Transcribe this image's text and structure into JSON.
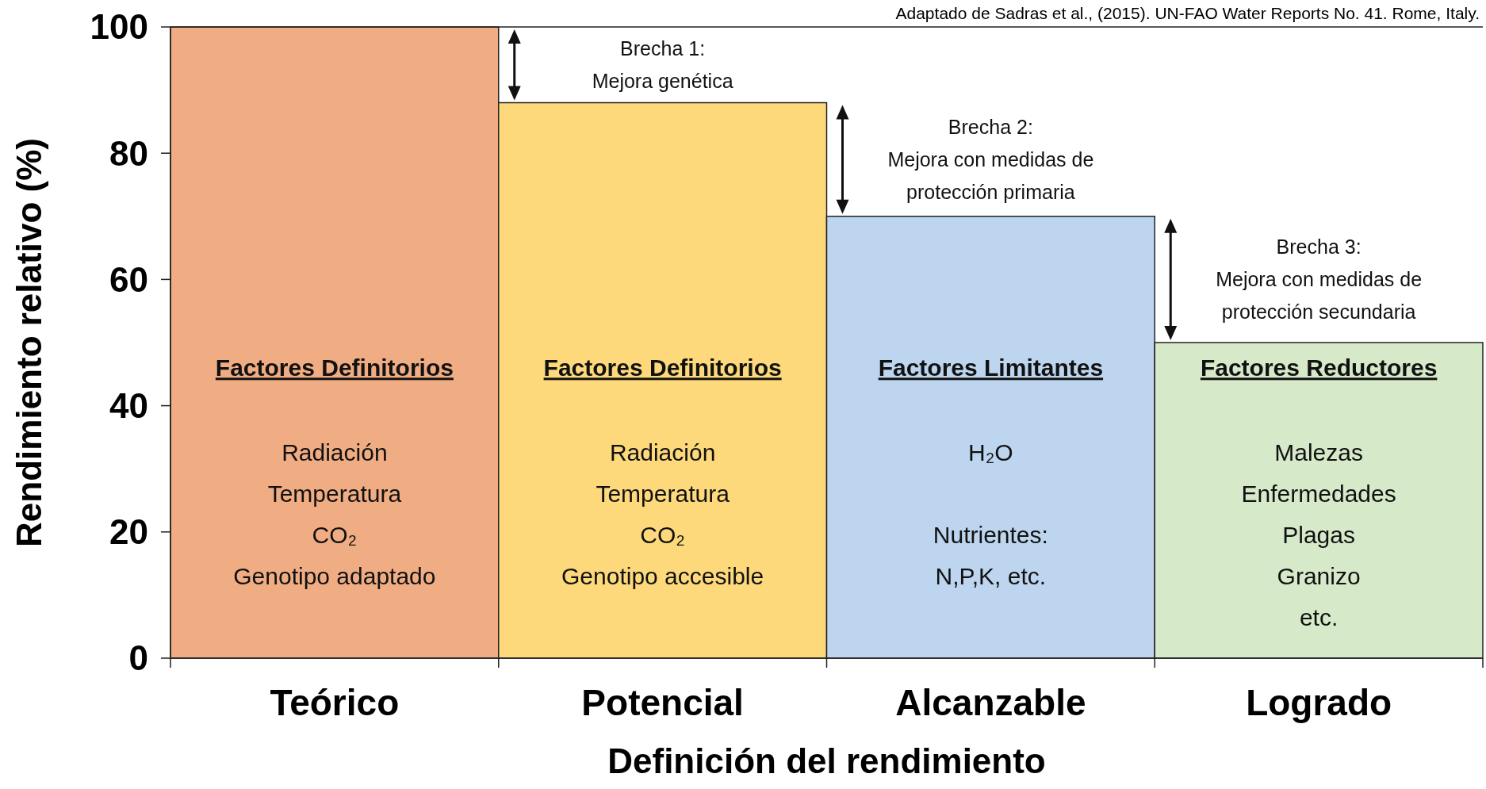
{
  "chart_data": {
    "type": "bar",
    "ylabel": "Rendimiento relativo (%)",
    "xlabel": "Definición del rendimiento",
    "categories": [
      "Teórico",
      "Potencial",
      "Alcanzable",
      "Logrado"
    ],
    "values": [
      100,
      88,
      70,
      50
    ],
    "colors": [
      "#f0ad84",
      "#fdd97b",
      "#bdd5ee",
      "#d6e9c9"
    ],
    "ylim": [
      0,
      100
    ],
    "yticks": [
      0,
      20,
      40,
      60,
      80,
      100
    ],
    "annotations": [
      "Adaptado de Sadras et al., (2015). UN-FAO Water Reports No. 41. Rome, Italy.",
      "Factores Definitorios\nRadiación\nTemperatura\nCO₂\nGenotipo adaptado",
      "Factores Definitorios\nRadiación\nTemperatura\nCO₂\nGenotipo accesible",
      "Factores Limitantes\nH₂O\n\nNutrientes:\nN,P,K, etc.",
      "Factores Reductores\nMalezas\nEnfermedades\nPlagas\nGranizo\netc.",
      "Brecha 1:\nMejora genética",
      "Brecha 2:\nMejora con medidas de\nprotección primaria",
      "Brecha 3:\nMejora con medidas de\nprotección secundaria"
    ]
  }
}
